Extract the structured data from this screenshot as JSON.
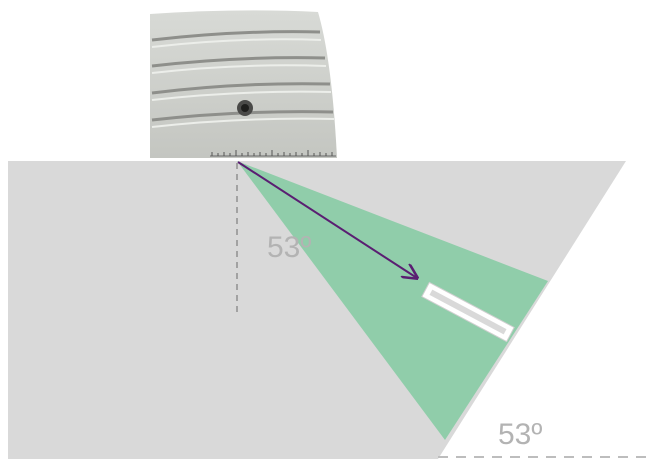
{
  "labels": {
    "beam_angle": "53º",
    "wedge_angle": "53º"
  },
  "colors": {
    "specimen": "#d9d9d9",
    "beam": "#90cdaa",
    "arrow": "#5a1e72",
    "defect": "#ffffff",
    "angle_text": "#b3b3b3",
    "probe_body": "#c9cbc6"
  },
  "icons": {
    "probe": "ultrasonic-angle-probe",
    "arrow": "propagation-arrow"
  }
}
